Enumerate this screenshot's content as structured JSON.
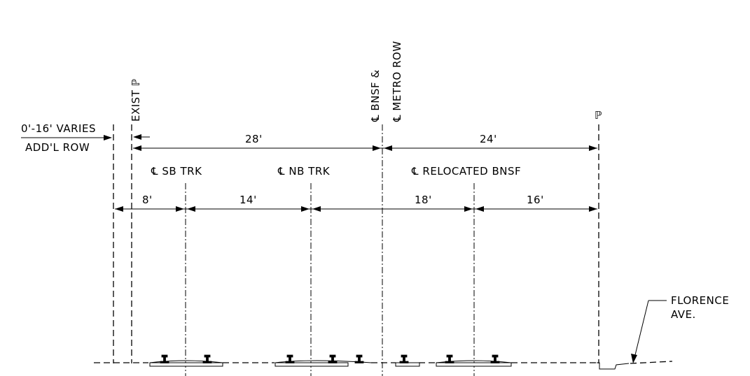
{
  "labels": {
    "varies": "0'-16' VARIES",
    "addl_row": "ADD'L ROW",
    "exist_pl": "EXIST ℙ",
    "cl_bnsf": "℄ BNSF &",
    "cl_metro_row": "℄ METRO ROW",
    "pl_right": "ℙ",
    "cl_sb_trk": "℄ SB TRK",
    "cl_nb_trk": "℄ NB TRK",
    "cl_relocated_bnsf": "℄ RELOCATED BNSF",
    "florence_line1": "FLORENCE",
    "florence_line2": "AVE."
  },
  "dimensions": {
    "upper_left": "28'",
    "upper_right": "24'",
    "lower_1": "8'",
    "lower_2": "14'",
    "lower_3": "18'",
    "lower_4": "16'"
  }
}
